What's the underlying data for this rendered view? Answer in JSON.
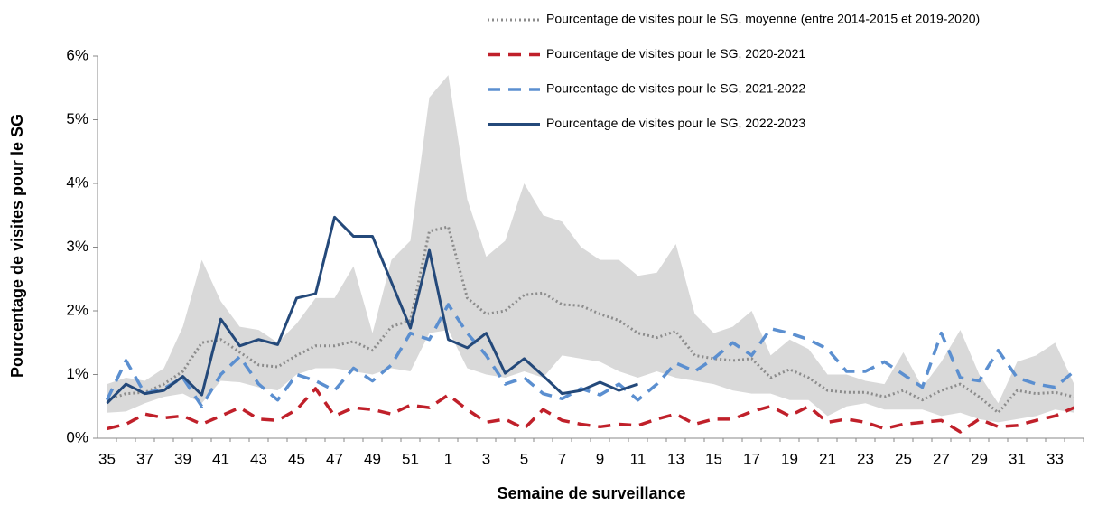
{
  "chart_data": {
    "type": "line",
    "y_label": "Pourcentage de visites pour le SG",
    "x_label": "Semaine de surveillance",
    "categories": [
      "35",
      null,
      "37",
      null,
      "39",
      null,
      "41",
      null,
      "43",
      null,
      "45",
      null,
      "47",
      null,
      "49",
      null,
      "51",
      null,
      "1",
      null,
      "3",
      null,
      "5",
      null,
      "7",
      null,
      "9",
      null,
      "11",
      null,
      "13",
      null,
      "15",
      null,
      "17",
      null,
      "19",
      null,
      "21",
      null,
      "23",
      null,
      "25",
      null,
      "27",
      null,
      "29",
      null,
      "31",
      null,
      "33",
      null
    ],
    "ylim": [
      0,
      6
    ],
    "yticks": [
      {
        "value": 0,
        "label": "0%"
      },
      {
        "value": 1,
        "label": "1%"
      },
      {
        "value": 2,
        "label": "2%"
      },
      {
        "value": 3,
        "label": "3%"
      },
      {
        "value": 4,
        "label": "4%"
      },
      {
        "value": 5,
        "label": "5%"
      },
      {
        "value": 6,
        "label": "6%"
      }
    ],
    "band": {
      "color": "#d9d9d9",
      "upper": [
        0.85,
        0.95,
        0.9,
        1.1,
        1.75,
        2.8,
        2.15,
        1.75,
        1.7,
        1.5,
        1.8,
        2.2,
        2.2,
        2.7,
        1.65,
        2.8,
        3.1,
        5.35,
        5.7,
        3.75,
        2.85,
        3.1,
        4.0,
        3.5,
        3.4,
        3.0,
        2.8,
        2.8,
        2.55,
        2.6,
        3.05,
        1.95,
        1.65,
        1.75,
        2.0,
        1.3,
        1.55,
        1.4,
        1.0,
        1.0,
        0.9,
        0.85,
        1.35,
        0.8,
        1.2,
        1.7,
        1.0,
        0.55,
        1.2,
        1.3,
        1.5,
        0.85
      ],
      "lower": [
        0.4,
        0.42,
        0.55,
        0.65,
        0.7,
        0.55,
        0.9,
        0.88,
        0.8,
        0.75,
        1.0,
        1.1,
        1.1,
        1.05,
        1.0,
        1.1,
        1.05,
        1.65,
        1.7,
        1.1,
        1.0,
        0.95,
        1.05,
        0.95,
        1.3,
        1.25,
        1.2,
        1.05,
        0.95,
        1.05,
        0.95,
        0.9,
        0.85,
        0.75,
        0.7,
        0.7,
        0.6,
        0.6,
        0.35,
        0.5,
        0.55,
        0.45,
        0.45,
        0.45,
        0.35,
        0.4,
        0.3,
        0.25,
        0.3,
        0.35,
        0.45,
        0.4
      ]
    },
    "series": [
      {
        "name": "Pourcentage de visites pour le SG, moyenne (entre 2014-2015 et 2019-2020)",
        "color": "#8c8c8c",
        "style": "dotted",
        "values": [
          0.6,
          0.7,
          0.72,
          0.85,
          1.05,
          1.5,
          1.55,
          1.35,
          1.15,
          1.12,
          1.3,
          1.45,
          1.45,
          1.52,
          1.38,
          1.75,
          1.85,
          3.25,
          3.32,
          2.2,
          1.95,
          2.0,
          2.25,
          2.28,
          2.1,
          2.08,
          1.95,
          1.85,
          1.65,
          1.58,
          1.68,
          1.3,
          1.25,
          1.22,
          1.25,
          0.95,
          1.08,
          0.95,
          0.75,
          0.72,
          0.72,
          0.65,
          0.75,
          0.6,
          0.75,
          0.85,
          0.65,
          0.4,
          0.75,
          0.7,
          0.72,
          0.65
        ]
      },
      {
        "name": "Pourcentage de visites pour le SG, 2020-2021",
        "color": "#c0202a",
        "style": "dashed",
        "values": [
          0.15,
          0.22,
          0.38,
          0.32,
          0.35,
          0.22,
          0.35,
          0.48,
          0.3,
          0.28,
          0.45,
          0.78,
          0.35,
          0.48,
          0.45,
          0.38,
          0.52,
          0.48,
          0.68,
          0.45,
          0.25,
          0.3,
          0.15,
          0.45,
          0.28,
          0.22,
          0.18,
          0.22,
          0.2,
          0.3,
          0.38,
          0.22,
          0.3,
          0.3,
          0.42,
          0.5,
          0.35,
          0.5,
          0.25,
          0.3,
          0.25,
          0.15,
          0.22,
          0.25,
          0.28,
          0.1,
          0.3,
          0.18,
          0.2,
          0.28,
          0.35,
          0.48
        ]
      },
      {
        "name": "Pourcentage de visites pour le SG, 2021-2022",
        "color": "#5b8fd0",
        "style": "dashed",
        "values": [
          0.6,
          1.22,
          0.7,
          0.78,
          0.95,
          0.5,
          1.0,
          1.28,
          0.85,
          0.6,
          1.0,
          0.9,
          0.75,
          1.1,
          0.9,
          1.15,
          1.65,
          1.55,
          2.1,
          1.65,
          1.3,
          0.85,
          0.95,
          0.7,
          0.62,
          0.78,
          0.68,
          0.85,
          0.6,
          0.85,
          1.18,
          1.05,
          1.25,
          1.5,
          1.3,
          1.72,
          1.65,
          1.55,
          1.4,
          1.05,
          1.05,
          1.2,
          1.0,
          0.8,
          1.65,
          0.95,
          0.9,
          1.38,
          0.95,
          0.85,
          0.8,
          1.05
        ]
      },
      {
        "name": "Pourcentage de visites pour le SG, 2022-2023",
        "color": "#24497a",
        "style": "solid",
        "values": [
          0.55,
          0.85,
          0.7,
          0.75,
          0.97,
          0.68,
          1.87,
          1.45,
          1.55,
          1.47,
          2.2,
          2.27,
          3.47,
          3.17,
          3.17,
          2.45,
          1.73,
          2.95,
          1.55,
          1.42,
          1.65,
          1.02,
          1.25,
          0.98,
          0.7,
          0.75,
          0.88,
          0.75,
          0.85,
          null,
          null,
          null,
          null,
          null,
          null,
          null,
          null,
          null,
          null,
          null,
          null,
          null,
          null,
          null,
          null,
          null,
          null,
          null,
          null,
          null,
          null,
          null
        ]
      }
    ]
  }
}
